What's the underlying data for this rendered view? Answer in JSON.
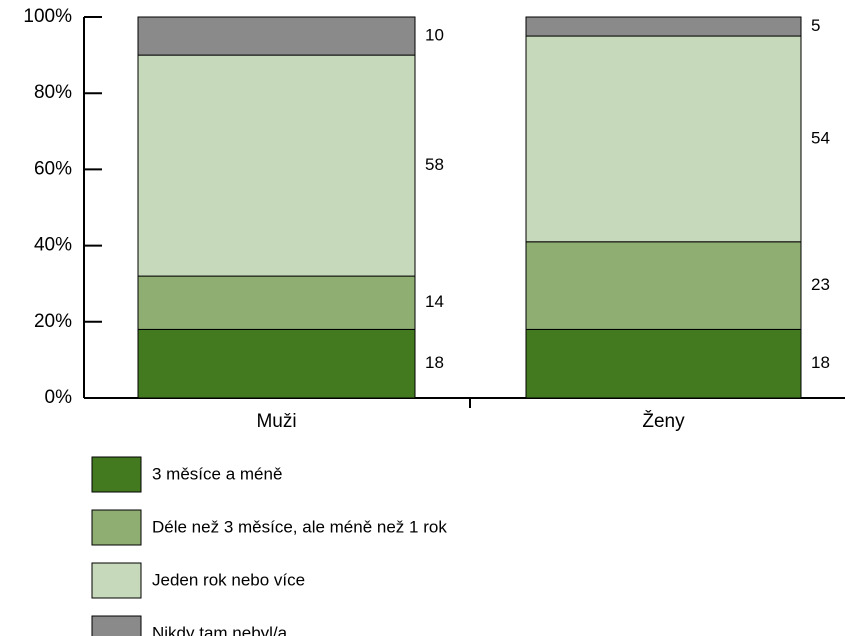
{
  "chart_data": {
    "type": "stacked_bar",
    "categories": [
      "Muži",
      "Ženy"
    ],
    "series": [
      {
        "name": "3 měsíce a méně",
        "color": "#437a1f",
        "values": [
          18,
          18
        ]
      },
      {
        "name": "Déle než 3 měsíce, ale méně než 1 rok",
        "color": "#8fae72",
        "values": [
          14,
          23
        ]
      },
      {
        "name": "Jeden rok nebo více",
        "color": "#c7d9bb",
        "values": [
          58,
          54
        ]
      },
      {
        "name": "Nikdy tam nebyl/a",
        "color": "#8a8a8a",
        "values": [
          10,
          5
        ]
      }
    ],
    "ylim": [
      0,
      100
    ],
    "yticks": [
      {
        "value": 0,
        "label": "0%"
      },
      {
        "value": 20,
        "label": "20%"
      },
      {
        "value": 40,
        "label": "40%"
      },
      {
        "value": 60,
        "label": "60%"
      },
      {
        "value": 80,
        "label": "80%"
      },
      {
        "value": 100,
        "label": "100%"
      }
    ]
  }
}
